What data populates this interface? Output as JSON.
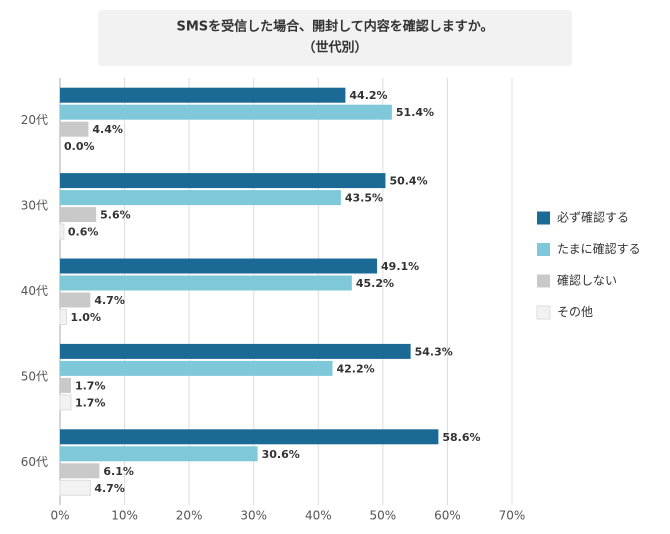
{
  "chart_data": {
    "type": "bar",
    "orientation": "horizontal",
    "title": "SMSを受信した場合、開封して内容を確認しますか。",
    "subtitle": "（世代別）",
    "categories": [
      "20代",
      "30代",
      "40代",
      "50代",
      "60代"
    ],
    "series": [
      {
        "name": "必ず確認する",
        "color": "#1b6a96",
        "values": [
          44.2,
          50.4,
          49.1,
          54.3,
          58.6
        ],
        "value_labels": [
          "44.2%",
          "50.4%",
          "49.1%",
          "54.3%",
          "58.6%"
        ]
      },
      {
        "name": "たまに確認する",
        "color": "#7fc8da",
        "values": [
          51.4,
          43.5,
          45.2,
          42.2,
          30.6
        ],
        "value_labels": [
          "51.4%",
          "43.5%",
          "45.2%",
          "42.2%",
          "30.6%"
        ]
      },
      {
        "name": "確認しない",
        "color": "#c9c9c9",
        "values": [
          4.4,
          5.6,
          4.7,
          1.7,
          6.1
        ],
        "value_labels": [
          "4.4%",
          "5.6%",
          "4.7%",
          "1.7%",
          "6.1%"
        ]
      },
      {
        "name": "その他",
        "color": "#f2f2f2",
        "values": [
          0.0,
          0.6,
          1.0,
          1.7,
          4.7
        ],
        "value_labels": [
          "0.0%",
          "0.6%",
          "1.0%",
          "1.7%",
          "4.7%"
        ]
      }
    ],
    "xlim": [
      0,
      70
    ],
    "xticks": [
      {
        "value": 0,
        "label": "0%"
      },
      {
        "value": 10,
        "label": "10%"
      },
      {
        "value": 20,
        "label": "20%"
      },
      {
        "value": 30,
        "label": "30%"
      },
      {
        "value": 40,
        "label": "40%"
      },
      {
        "value": 50,
        "label": "50%"
      },
      {
        "value": 60,
        "label": "60%"
      },
      {
        "value": 70,
        "label": "70%"
      }
    ],
    "grid": true,
    "legend": "right"
  }
}
